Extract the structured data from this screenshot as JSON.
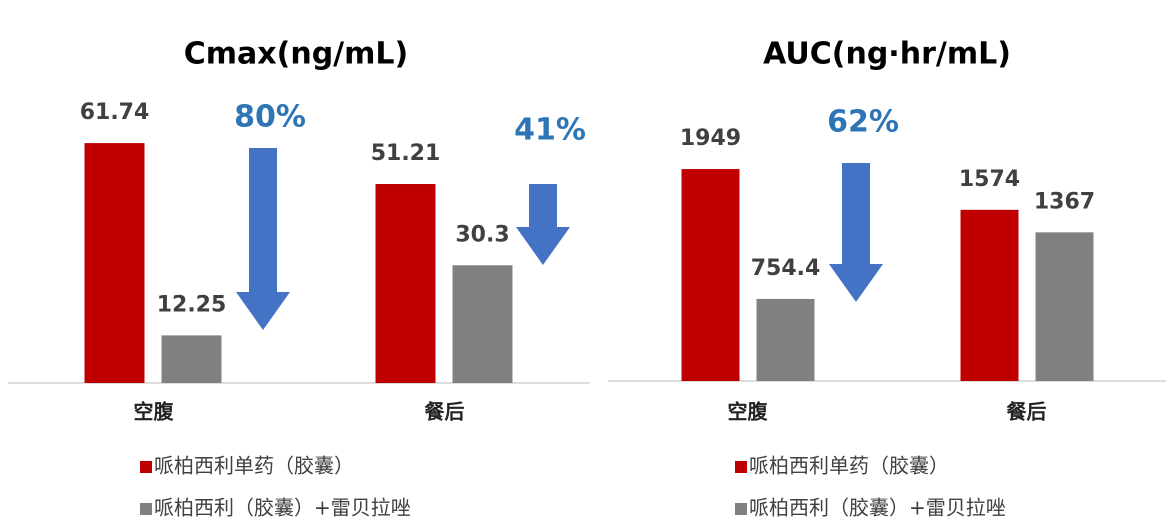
{
  "chart_data": [
    {
      "type": "bar",
      "title": "Cmax(ng/mL)",
      "categories": [
        "空腹",
        "餐后"
      ],
      "series": [
        {
          "name": "哌柏西利单药（胶囊）",
          "color": "#c00000",
          "values": [
            61.74,
            51.21
          ]
        },
        {
          "name": "哌柏西利（胶囊）+雷贝拉唑",
          "color": "#808080",
          "values": [
            12.25,
            30.3
          ]
        }
      ],
      "ylim": [
        0,
        70
      ],
      "annotations": [
        "80%",
        "41%"
      ],
      "annotation_color": "#2e75b6",
      "arrow_color": "#4472c4"
    },
    {
      "type": "bar",
      "title": "AUC(ng·hr/mL)",
      "categories": [
        "空腹",
        "餐后"
      ],
      "series": [
        {
          "name": "哌柏西利单药（胶囊）",
          "color": "#c00000",
          "values": [
            1949,
            1574
          ]
        },
        {
          "name": "哌柏西利（胶囊）+雷贝拉唑",
          "color": "#808080",
          "values": [
            754.4,
            1367
          ]
        }
      ],
      "ylim": [
        0,
        2000
      ],
      "annotations": [
        "62%"
      ],
      "annotation_color": "#2e75b6",
      "arrow_color": "#4472c4"
    }
  ]
}
